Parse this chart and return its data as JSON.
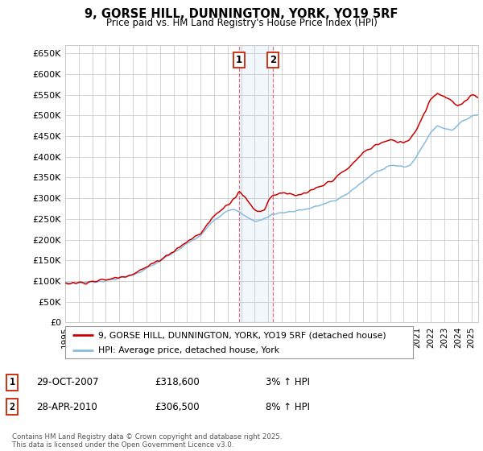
{
  "title_line1": "9, GORSE HILL, DUNNINGTON, YORK, YO19 5RF",
  "title_line2": "Price paid vs. HM Land Registry's House Price Index (HPI)",
  "ylim": [
    0,
    670000
  ],
  "yticks": [
    0,
    50000,
    100000,
    150000,
    200000,
    250000,
    300000,
    350000,
    400000,
    450000,
    500000,
    550000,
    600000,
    650000
  ],
  "xlim_start": 1995.0,
  "xlim_end": 2025.5,
  "background_color": "#ffffff",
  "grid_color": "#cccccc",
  "line1_color": "#cc0000",
  "line2_color": "#88bbdd",
  "transaction1_date": 2007.83,
  "transaction1_price": 318600,
  "transaction1_label": "1",
  "transaction2_date": 2010.33,
  "transaction2_price": 306500,
  "transaction2_label": "2",
  "legend_line1": "9, GORSE HILL, DUNNINGTON, YORK, YO19 5RF (detached house)",
  "legend_line2": "HPI: Average price, detached house, York",
  "annotation1_date": "29-OCT-2007",
  "annotation1_price": "£318,600",
  "annotation1_hpi": "3% ↑ HPI",
  "annotation2_date": "28-APR-2010",
  "annotation2_price": "£306,500",
  "annotation2_hpi": "8% ↑ HPI",
  "footer": "Contains HM Land Registry data © Crown copyright and database right 2025.\nThis data is licensed under the Open Government Licence v3.0."
}
